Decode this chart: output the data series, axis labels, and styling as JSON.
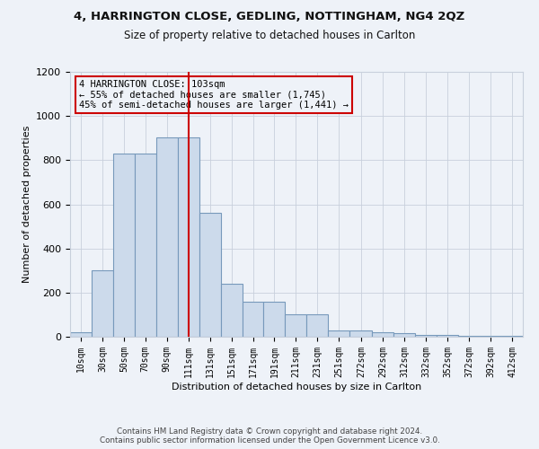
{
  "title": "4, HARRINGTON CLOSE, GEDLING, NOTTINGHAM, NG4 2QZ",
  "subtitle": "Size of property relative to detached houses in Carlton",
  "xlabel": "Distribution of detached houses by size in Carlton",
  "ylabel": "Number of detached properties",
  "footer_line1": "Contains HM Land Registry data © Crown copyright and database right 2024.",
  "footer_line2": "Contains public sector information licensed under the Open Government Licence v3.0.",
  "bar_color": "#ccdaeb",
  "bar_edge_color": "#7799bb",
  "grid_color": "#c8d0dc",
  "bg_color": "#eef2f8",
  "annotation_box_color": "#cc0000",
  "annotation_line1": "4 HARRINGTON CLOSE: 103sqm",
  "annotation_line2": "← 55% of detached houses are smaller (1,745)",
  "annotation_line3": "45% of semi-detached houses are larger (1,441) →",
  "property_line_x": 110,
  "categories": [
    "10sqm",
    "30sqm",
    "50sqm",
    "70sqm",
    "90sqm",
    "111sqm",
    "131sqm",
    "151sqm",
    "171sqm",
    "191sqm",
    "211sqm",
    "231sqm",
    "251sqm",
    "272sqm",
    "292sqm",
    "312sqm",
    "332sqm",
    "352sqm",
    "372sqm",
    "392sqm",
    "412sqm"
  ],
  "bin_edges": [
    0,
    20,
    40,
    60,
    80,
    100,
    120,
    140,
    160,
    180,
    200,
    220,
    240,
    260,
    281,
    301,
    321,
    341,
    361,
    381,
    401,
    421
  ],
  "bar_heights": [
    20,
    300,
    830,
    830,
    905,
    905,
    560,
    240,
    160,
    160,
    100,
    100,
    30,
    30,
    20,
    15,
    10,
    10,
    5,
    5,
    5
  ],
  "ylim": [
    0,
    1200
  ],
  "yticks": [
    0,
    200,
    400,
    600,
    800,
    1000,
    1200
  ]
}
